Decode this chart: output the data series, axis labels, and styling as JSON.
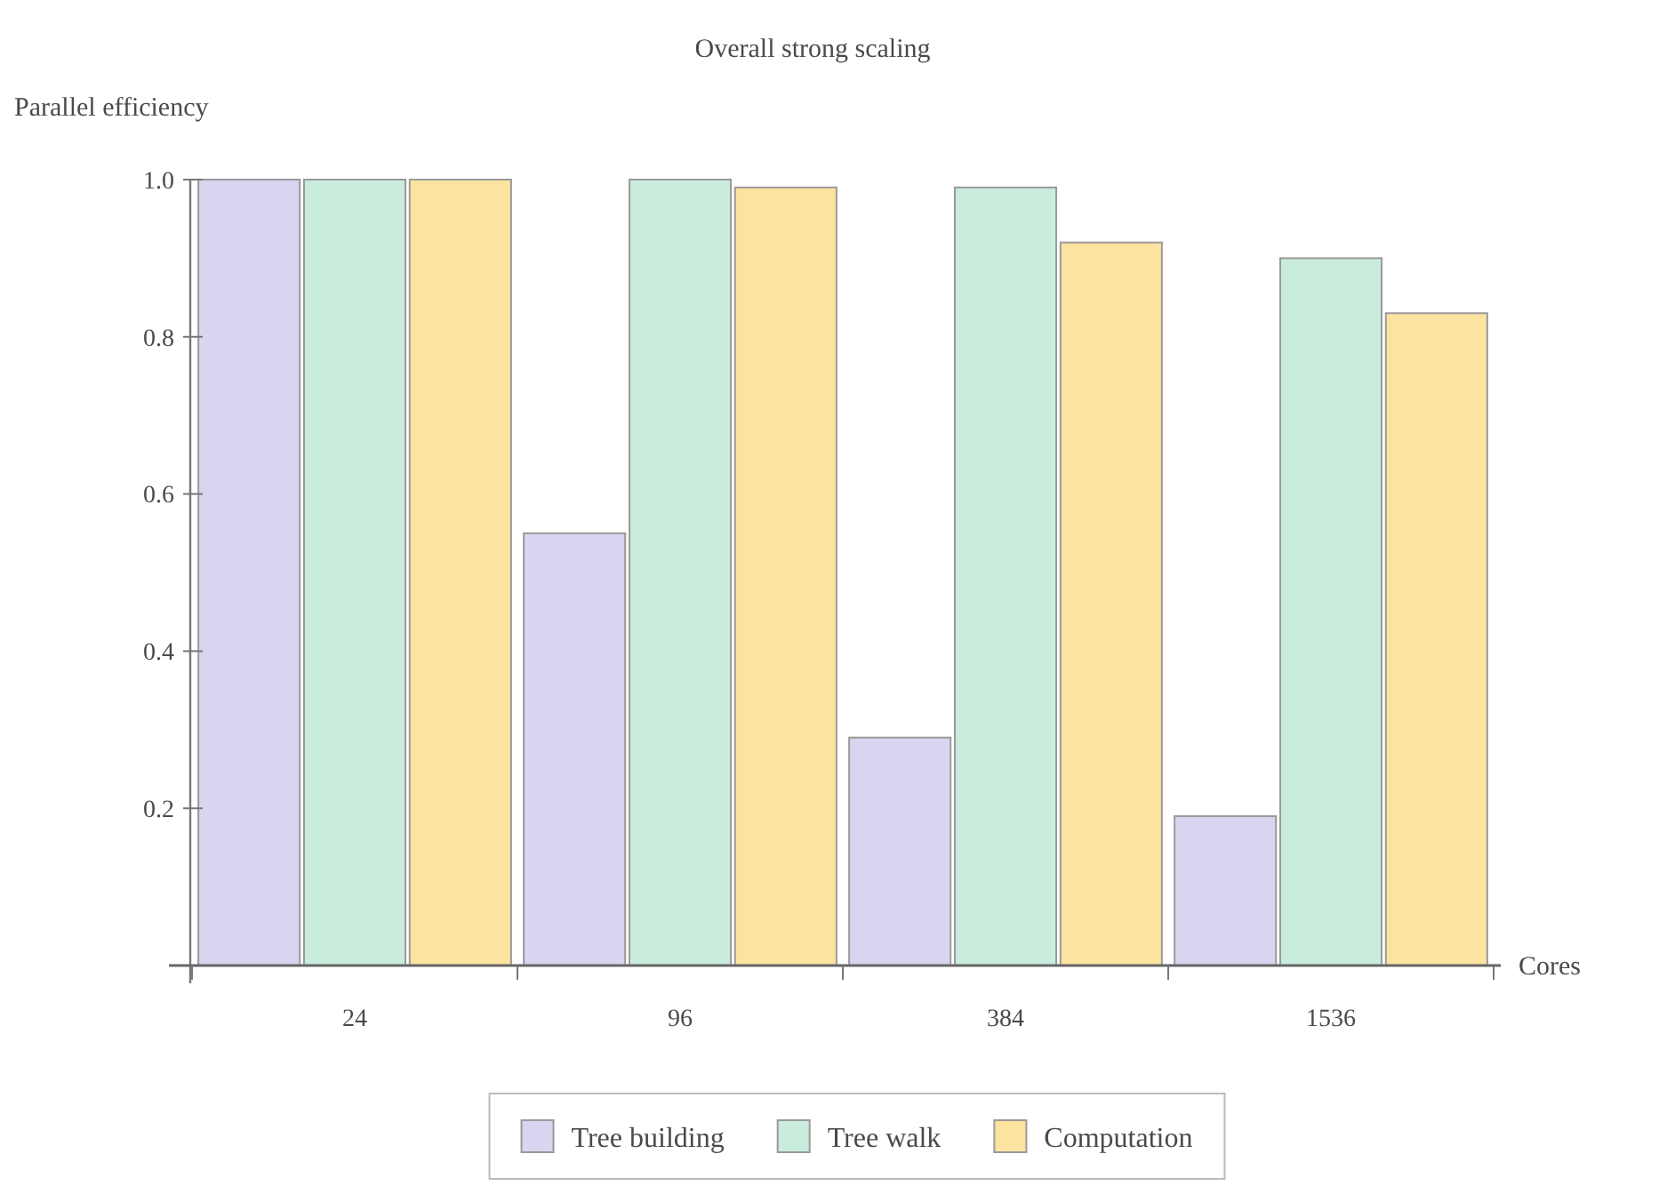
{
  "chart_data": {
    "type": "bar",
    "title": "Overall strong scaling",
    "xlabel": "Cores",
    "ylabel": "Parallel efficiency",
    "categories": [
      "24",
      "96",
      "384",
      "1536"
    ],
    "series": [
      {
        "name": "Tree building",
        "color": "#d8d5f0",
        "values": [
          1.0,
          0.55,
          0.29,
          0.19
        ]
      },
      {
        "name": "Tree walk",
        "color": "#c9ecdc",
        "values": [
          1.0,
          1.0,
          0.99,
          0.9
        ]
      },
      {
        "name": "Computation",
        "color": "#fce3a0",
        "values": [
          1.0,
          0.99,
          0.92,
          0.83
        ]
      }
    ],
    "ylim": [
      0,
      1
    ],
    "yticks": [
      0.2,
      0.4,
      0.6,
      0.8,
      {
        "value": 1,
        "label": "1.0"
      }
    ],
    "legend": "bottom"
  }
}
